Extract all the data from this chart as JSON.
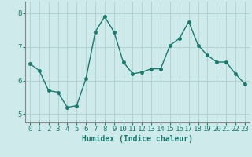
{
  "x": [
    0,
    1,
    2,
    3,
    4,
    5,
    6,
    7,
    8,
    9,
    10,
    11,
    12,
    13,
    14,
    15,
    16,
    17,
    18,
    19,
    20,
    21,
    22,
    23
  ],
  "y": [
    6.5,
    6.3,
    5.7,
    5.65,
    5.2,
    5.25,
    6.05,
    7.45,
    7.9,
    7.45,
    6.55,
    6.2,
    6.25,
    6.35,
    6.35,
    7.05,
    7.25,
    7.75,
    7.05,
    6.75,
    6.55,
    6.55,
    6.2,
    5.9
  ],
  "line_color": "#1a7a6e",
  "marker": "o",
  "markersize": 2.5,
  "linewidth": 1.0,
  "bg_color": "#ceeaea",
  "grid_color": "#aecece",
  "xlabel": "Humidex (Indice chaleur)",
  "xlabel_fontsize": 7,
  "tick_fontsize": 6.5,
  "xlim": [
    -0.5,
    23.5
  ],
  "ylim": [
    4.75,
    8.35
  ],
  "yticks": [
    5,
    6,
    7,
    8
  ],
  "xticks": [
    0,
    1,
    2,
    3,
    4,
    5,
    6,
    7,
    8,
    9,
    10,
    11,
    12,
    13,
    14,
    15,
    16,
    17,
    18,
    19,
    20,
    21,
    22,
    23
  ]
}
